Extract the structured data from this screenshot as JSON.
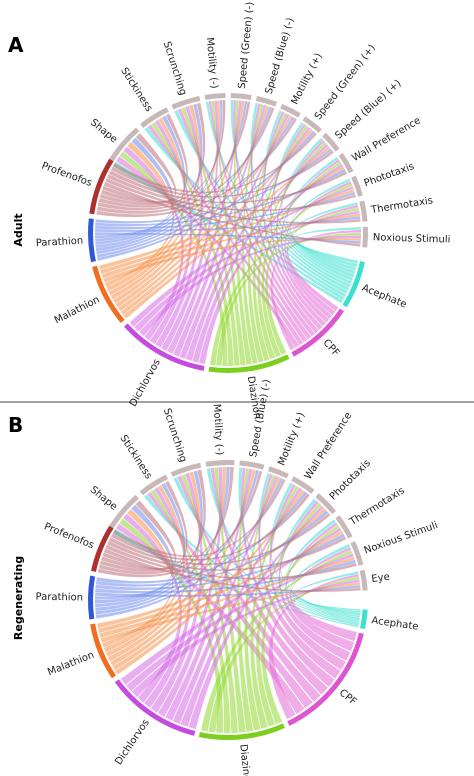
{
  "panels": [
    {
      "letter": "A",
      "row_label": "Adult",
      "behaviors": [
        {
          "label": "Noxious Stimuli"
        },
        {
          "label": "Thermotaxis"
        },
        {
          "label": "Phototaxis"
        },
        {
          "label": "Wall Preference"
        },
        {
          "label": "Speed (Blue) (+)"
        },
        {
          "label": "Speed (Green) (+)"
        },
        {
          "label": "Motility (+)"
        },
        {
          "label": "Speed (Blue) (-)"
        },
        {
          "label": "Speed (Green) (-)"
        },
        {
          "label": "Motility (-)"
        },
        {
          "label": "Scrunching"
        },
        {
          "label": "Stickiness"
        },
        {
          "label": "Shape"
        }
      ],
      "chemicals": [
        {
          "label": "Acephate",
          "color": "#3de0cf"
        },
        {
          "label": "CPF",
          "color": "#e36bd6"
        },
        {
          "label": "Diazinon",
          "color": "#8fd92f"
        },
        {
          "label": "Dichlorvos",
          "color": "#d76ae6"
        },
        {
          "label": "Malathion",
          "color": "#f7924a"
        },
        {
          "label": "Parathion",
          "color": "#6f8cf0"
        },
        {
          "label": "Profenofos",
          "color": "#c0717a"
        }
      ]
    },
    {
      "letter": "B",
      "row_label": "Regenerating",
      "behaviors": [
        {
          "label": "Eye"
        },
        {
          "label": "Noxious Stimuli"
        },
        {
          "label": "Thermotaxis"
        },
        {
          "label": "Phototaxis"
        },
        {
          "label": "Wall Preference"
        },
        {
          "label": "Motility (+)"
        },
        {
          "label": "Speed (Blue) (-)"
        },
        {
          "label": "Motility (-)"
        },
        {
          "label": "Scrunching"
        },
        {
          "label": "Stickiness"
        },
        {
          "label": "Shape"
        }
      ],
      "chemicals": [
        {
          "label": "Acephate",
          "color": "#3de0cf"
        },
        {
          "label": "CPF",
          "color": "#e36bd6"
        },
        {
          "label": "Diazinon",
          "color": "#8fd92f"
        },
        {
          "label": "Dichlorvos",
          "color": "#d76ae6"
        },
        {
          "label": "Malathion",
          "color": "#f7924a"
        },
        {
          "label": "Parathion",
          "color": "#6f8cf0"
        },
        {
          "label": "Profenofos",
          "color": "#c0717a"
        }
      ]
    }
  ],
  "colors": {
    "behavior_arc": "#c9b8b8",
    "acephate_arc": "#3de0cf",
    "cpf_arc": "#dd55d0",
    "diazinon_arc": "#7ccf1f",
    "dichlorvos_arc": "#c64ce0",
    "malathion_arc": "#f26e1e",
    "parathion_arc": "#2f57d6",
    "profenofos_arc": "#b03030"
  }
}
